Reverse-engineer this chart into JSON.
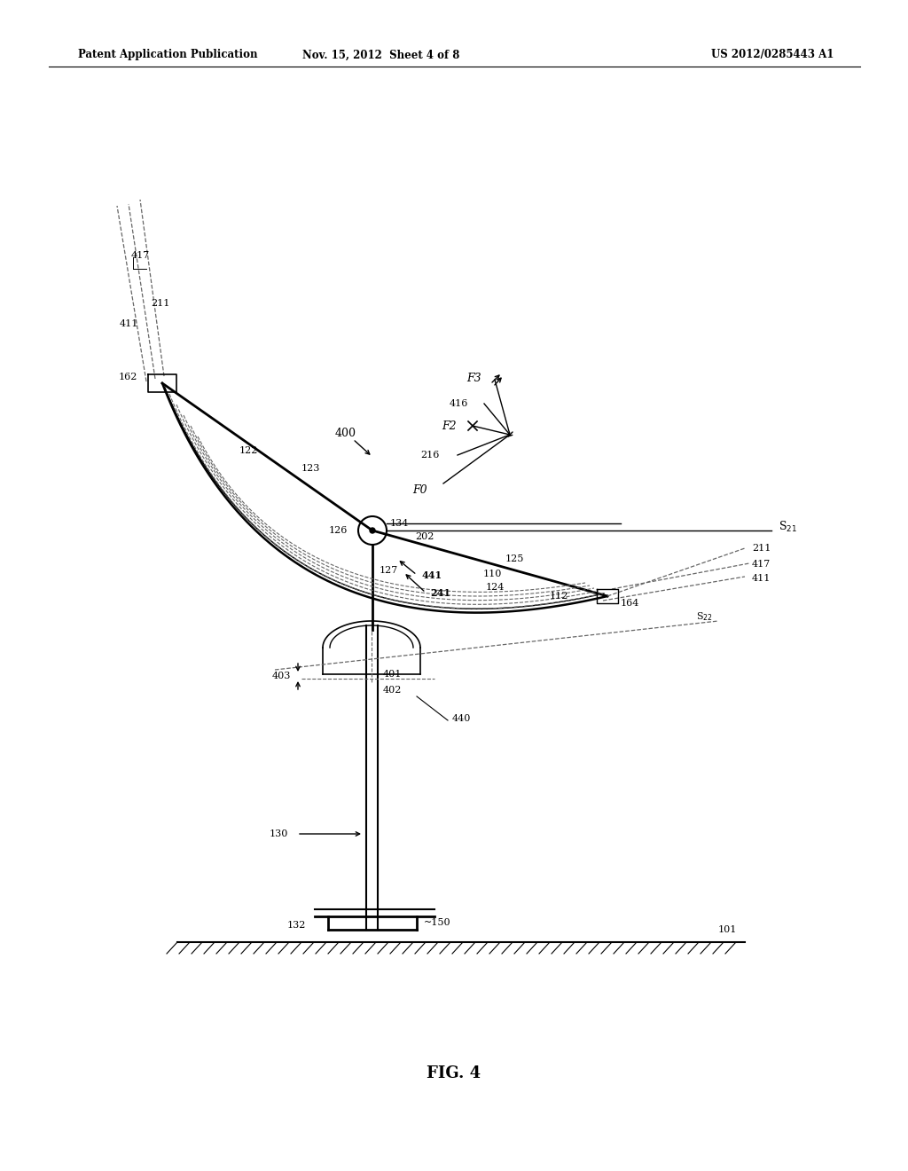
{
  "bg_color": "#ffffff",
  "header_left": "Patent Application Publication",
  "header_mid": "Nov. 15, 2012  Sheet 4 of 8",
  "header_right": "US 2012/0285443 A1",
  "fig_label": "FIG. 4",
  "line_color": "#000000",
  "dashed_color": "#666666"
}
